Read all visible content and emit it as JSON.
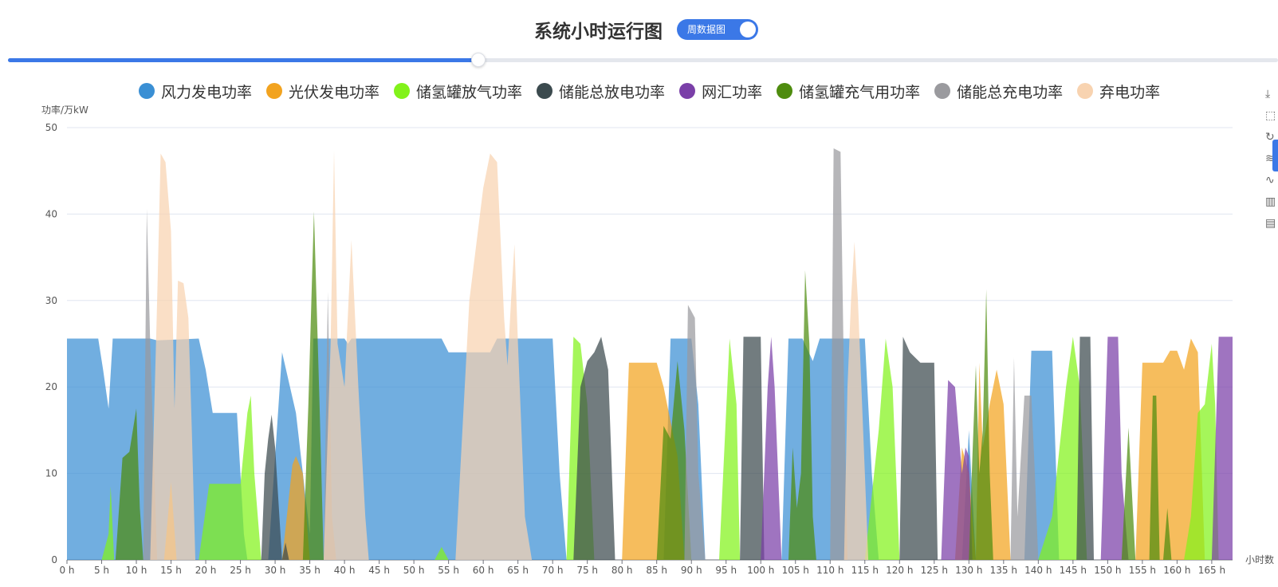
{
  "header": {
    "title": "系统小时运行图",
    "toggle_label": "周数据图"
  },
  "slider": {
    "value_fraction": 0.37
  },
  "toolbox": {
    "icons": [
      "download-icon",
      "crop-icon",
      "restore-icon",
      "data-zoom-icon",
      "line-chart-icon",
      "bar-chart-icon",
      "data-view-icon"
    ]
  },
  "chart_data": {
    "type": "area",
    "ylabel": "功率/万kW",
    "xlabel": "小时数",
    "ylim": [
      0,
      50
    ],
    "yticks": [
      0,
      10,
      20,
      30,
      40,
      50
    ],
    "xlim": [
      0,
      168
    ],
    "xtick_step": 5,
    "xtick_suffix": " h",
    "grid": true,
    "legend_position": "top",
    "series": [
      {
        "name": "风力发电功率",
        "color": "#3a8fd4",
        "opacity": 0.72,
        "points": [
          [
            0,
            25.6
          ],
          [
            4.5,
            25.6
          ],
          [
            5.2,
            22
          ],
          [
            6,
            17.5
          ],
          [
            6.6,
            25.6
          ],
          [
            12,
            25.6
          ],
          [
            13,
            25.4
          ],
          [
            19,
            25.6
          ],
          [
            20,
            22
          ],
          [
            21,
            17
          ],
          [
            24.5,
            17
          ],
          [
            25.5,
            3
          ],
          [
            26,
            0
          ],
          [
            29,
            0
          ],
          [
            31,
            24
          ],
          [
            33,
            17
          ],
          [
            35,
            3
          ],
          [
            35.5,
            25.6
          ],
          [
            40,
            25.6
          ],
          [
            40.5,
            25
          ],
          [
            41,
            25.6
          ],
          [
            54,
            25.6
          ],
          [
            55,
            24
          ],
          [
            61,
            24
          ],
          [
            62,
            25.6
          ],
          [
            70,
            25.6
          ],
          [
            71,
            10
          ],
          [
            72,
            0
          ],
          [
            86,
            0
          ],
          [
            87,
            25.6
          ],
          [
            90,
            25.6
          ],
          [
            91,
            18
          ],
          [
            92,
            0
          ],
          [
            103,
            0
          ],
          [
            104,
            25.6
          ],
          [
            106,
            25.6
          ],
          [
            107.5,
            23
          ],
          [
            108.5,
            25.6
          ],
          [
            115,
            25.6
          ],
          [
            116,
            10
          ],
          [
            117,
            0
          ],
          [
            129,
            0
          ],
          [
            130,
            15
          ],
          [
            131,
            0
          ],
          [
            138,
            0
          ],
          [
            139,
            24.2
          ],
          [
            142,
            24.2
          ],
          [
            143,
            0
          ],
          [
            168,
            0
          ]
        ]
      },
      {
        "name": "光伏发电功率",
        "color": "#f2a31f",
        "opacity": 0.72,
        "points": [
          [
            0,
            0
          ],
          [
            14,
            0
          ],
          [
            15,
            9
          ],
          [
            15.8,
            0
          ],
          [
            31,
            0
          ],
          [
            32.5,
            11
          ],
          [
            33,
            12
          ],
          [
            34,
            10
          ],
          [
            35,
            0
          ],
          [
            80,
            0
          ],
          [
            81,
            22.8
          ],
          [
            85,
            22.8
          ],
          [
            86,
            20
          ],
          [
            88,
            12
          ],
          [
            89,
            0
          ],
          [
            128,
            0
          ],
          [
            129,
            13
          ],
          [
            130,
            10
          ],
          [
            131,
            0
          ],
          [
            131.5,
            22.8
          ],
          [
            132,
            13
          ],
          [
            133,
            18
          ],
          [
            134,
            22
          ],
          [
            135,
            18
          ],
          [
            136,
            0
          ],
          [
            154,
            0
          ],
          [
            155,
            22.8
          ],
          [
            158,
            22.8
          ],
          [
            159,
            24.2
          ],
          [
            160,
            24.2
          ],
          [
            161,
            22
          ],
          [
            162,
            25.6
          ],
          [
            163,
            24
          ],
          [
            164,
            0
          ],
          [
            168,
            0
          ]
        ]
      },
      {
        "name": "储氢罐放气功率",
        "color": "#82f21a",
        "opacity": 0.72,
        "points": [
          [
            0,
            0
          ],
          [
            5,
            0
          ],
          [
            6,
            3
          ],
          [
            6.3,
            8.5
          ],
          [
            6.8,
            0
          ],
          [
            19,
            0
          ],
          [
            20.5,
            8.8
          ],
          [
            25,
            8.8
          ],
          [
            26,
            17
          ],
          [
            26.5,
            19
          ],
          [
            27,
            10
          ],
          [
            28,
            0
          ],
          [
            53,
            0
          ],
          [
            54,
            1.5
          ],
          [
            55,
            0
          ],
          [
            72,
            0
          ],
          [
            73,
            25.8
          ],
          [
            74,
            25
          ],
          [
            75,
            18
          ],
          [
            76,
            0
          ],
          [
            94,
            0
          ],
          [
            95.5,
            25.6
          ],
          [
            96.5,
            18
          ],
          [
            97,
            0
          ],
          [
            115,
            0
          ],
          [
            117,
            15
          ],
          [
            118,
            25.6
          ],
          [
            119,
            20
          ],
          [
            120,
            0
          ],
          [
            140,
            0
          ],
          [
            142,
            5
          ],
          [
            144,
            20
          ],
          [
            145,
            25.8
          ],
          [
            146,
            20
          ],
          [
            147,
            0
          ],
          [
            161,
            0
          ],
          [
            162,
            5
          ],
          [
            163,
            17
          ],
          [
            164,
            18
          ],
          [
            165,
            25
          ],
          [
            165.5,
            18
          ],
          [
            166,
            0
          ],
          [
            168,
            0
          ]
        ]
      },
      {
        "name": "储能总放电功率",
        "color": "#3b4a4e",
        "opacity": 0.72,
        "points": [
          [
            0,
            0
          ],
          [
            28,
            0
          ],
          [
            28.5,
            10
          ],
          [
            29,
            14
          ],
          [
            29.5,
            16.8
          ],
          [
            30,
            13
          ],
          [
            31,
            0
          ],
          [
            31.5,
            2
          ],
          [
            32,
            0
          ],
          [
            73,
            0
          ],
          [
            74,
            20
          ],
          [
            75,
            23
          ],
          [
            76,
            24
          ],
          [
            77,
            25.8
          ],
          [
            78,
            22
          ],
          [
            79,
            0
          ],
          [
            97,
            0
          ],
          [
            97.5,
            25.8
          ],
          [
            100,
            25.8
          ],
          [
            100.5,
            0
          ],
          [
            120,
            0
          ],
          [
            120.5,
            25.8
          ],
          [
            121.5,
            24
          ],
          [
            123,
            22.8
          ],
          [
            125,
            22.8
          ],
          [
            125.5,
            0
          ],
          [
            145.5,
            0
          ],
          [
            146,
            25.8
          ],
          [
            147.5,
            25.8
          ],
          [
            148,
            0
          ],
          [
            168,
            0
          ]
        ]
      },
      {
        "name": "网汇功率",
        "color": "#7a3fa8",
        "opacity": 0.72,
        "points": [
          [
            0,
            0
          ],
          [
            100,
            0
          ],
          [
            101,
            20
          ],
          [
            101.5,
            25.8
          ],
          [
            102,
            20
          ],
          [
            103,
            0
          ],
          [
            126,
            0
          ],
          [
            127,
            20.8
          ],
          [
            128,
            20
          ],
          [
            129,
            10
          ],
          [
            129.5,
            13
          ],
          [
            130,
            12
          ],
          [
            130.5,
            0
          ],
          [
            149,
            0
          ],
          [
            150,
            25.8
          ],
          [
            151.5,
            25.8
          ],
          [
            152,
            10
          ],
          [
            153,
            0
          ],
          [
            165,
            0
          ],
          [
            166,
            25.8
          ],
          [
            168,
            25.8
          ],
          [
            168,
            0
          ]
        ]
      },
      {
        "name": "储氢罐充气用功率",
        "color": "#4e8c0e",
        "opacity": 0.72,
        "points": [
          [
            0,
            0
          ],
          [
            7,
            0
          ],
          [
            8,
            11.8
          ],
          [
            9,
            12.5
          ],
          [
            10,
            17.5
          ],
          [
            10.5,
            6
          ],
          [
            11,
            0
          ],
          [
            34,
            0
          ],
          [
            34.8,
            18
          ],
          [
            35.6,
            40.3
          ],
          [
            36.4,
            18
          ],
          [
            37,
            0
          ],
          [
            85,
            0
          ],
          [
            86,
            15.5
          ],
          [
            87,
            14
          ],
          [
            88,
            23
          ],
          [
            89,
            15
          ],
          [
            90,
            0
          ],
          [
            104,
            0
          ],
          [
            104.6,
            13
          ],
          [
            105.2,
            6
          ],
          [
            105.8,
            10
          ],
          [
            106.4,
            33.5
          ],
          [
            107,
            25
          ],
          [
            107.5,
            5
          ],
          [
            108,
            0
          ],
          [
            130,
            0
          ],
          [
            130.5,
            12
          ],
          [
            131,
            22.5
          ],
          [
            131.5,
            10
          ],
          [
            132,
            15
          ],
          [
            132.5,
            31.3
          ],
          [
            133,
            10
          ],
          [
            133.5,
            0
          ],
          [
            152,
            0
          ],
          [
            153,
            15.3
          ],
          [
            154,
            0
          ],
          [
            156,
            0
          ],
          [
            156.5,
            19
          ],
          [
            157,
            19
          ],
          [
            157.5,
            0
          ],
          [
            158,
            0
          ],
          [
            158.6,
            6
          ],
          [
            159.2,
            0
          ],
          [
            168,
            0
          ]
        ]
      },
      {
        "name": "储能总充电功率",
        "color": "#9a9a9e",
        "opacity": 0.72,
        "points": [
          [
            0,
            0
          ],
          [
            11,
            0
          ],
          [
            11.5,
            40.6
          ],
          [
            12,
            25
          ],
          [
            13,
            0
          ],
          [
            37,
            0
          ],
          [
            37.6,
            31
          ],
          [
            38.2,
            5
          ],
          [
            38.8,
            0
          ],
          [
            89,
            0
          ],
          [
            89.5,
            29.5
          ],
          [
            90.5,
            28
          ],
          [
            91,
            10
          ],
          [
            92,
            0
          ],
          [
            110,
            0
          ],
          [
            110.5,
            47.6
          ],
          [
            111.5,
            47.2
          ],
          [
            112,
            20
          ],
          [
            112.5,
            0
          ],
          [
            136,
            0
          ],
          [
            136.5,
            23.4
          ],
          [
            137,
            5
          ],
          [
            138,
            19
          ],
          [
            139,
            19
          ],
          [
            139.5,
            10
          ],
          [
            140,
            0
          ],
          [
            168,
            0
          ]
        ]
      },
      {
        "name": "弃电功率",
        "color": "#f8d3b0",
        "opacity": 0.72,
        "points": [
          [
            0,
            0
          ],
          [
            12,
            0
          ],
          [
            13,
            30
          ],
          [
            13.5,
            47
          ],
          [
            14.2,
            46
          ],
          [
            15,
            38
          ],
          [
            15.5,
            17.5
          ],
          [
            16,
            32.3
          ],
          [
            16.8,
            32
          ],
          [
            17.5,
            28
          ],
          [
            18,
            15
          ],
          [
            18.5,
            0
          ],
          [
            37,
            0
          ],
          [
            38,
            25
          ],
          [
            38.5,
            47.3
          ],
          [
            39,
            25
          ],
          [
            40,
            20
          ],
          [
            41,
            37
          ],
          [
            42,
            20
          ],
          [
            43,
            5
          ],
          [
            43.5,
            0
          ],
          [
            56,
            0
          ],
          [
            58,
            30
          ],
          [
            60,
            43
          ],
          [
            61,
            47
          ],
          [
            62,
            46
          ],
          [
            63,
            28
          ],
          [
            63.5,
            22.5
          ],
          [
            64,
            30
          ],
          [
            64.5,
            36.5
          ],
          [
            65,
            25
          ],
          [
            66,
            5
          ],
          [
            67,
            0
          ],
          [
            112,
            0
          ],
          [
            112.5,
            20
          ],
          [
            113,
            30
          ],
          [
            113.5,
            36.8
          ],
          [
            114,
            30
          ],
          [
            115,
            10
          ],
          [
            115.5,
            0
          ],
          [
            168,
            0
          ]
        ]
      }
    ]
  }
}
